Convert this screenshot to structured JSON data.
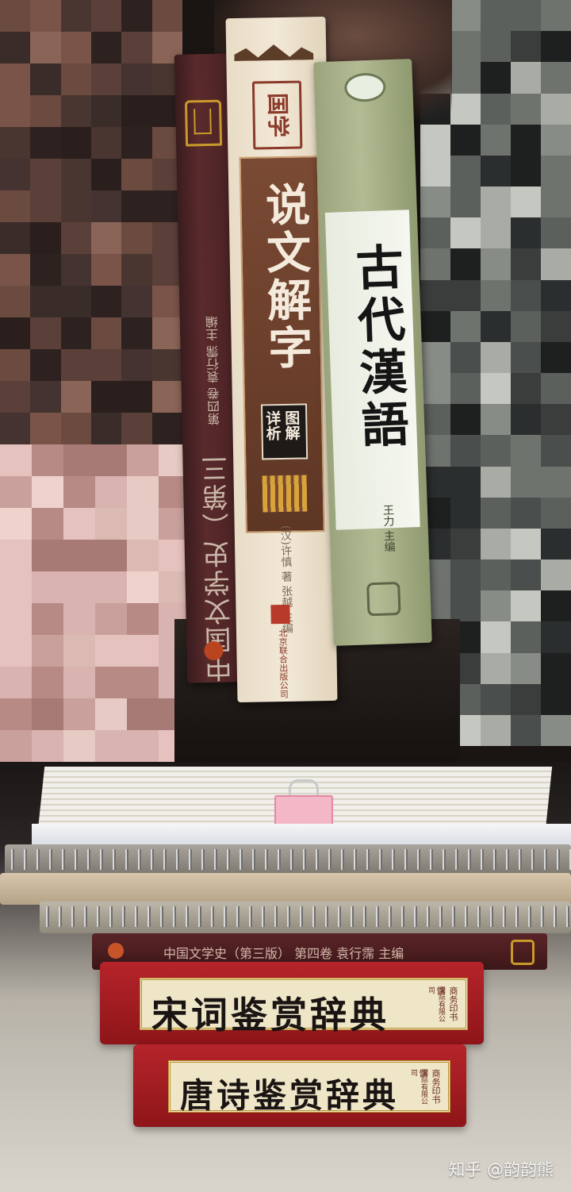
{
  "top_photo": {
    "description_books": [
      {
        "title": "中国文学史（第三版）",
        "meta": "第四卷 袁行霈 主编"
      },
      {
        "series": "国学",
        "title": "说文解字",
        "badge_line1": "图解",
        "badge_line2": "详析",
        "author": "(汉)许慎 著  张越 主编",
        "publisher": "北京联合出版公司"
      },
      {
        "title": "古代漢語",
        "author": "王力 主编"
      }
    ]
  },
  "bottom_photo": {
    "books": [
      {
        "title": "中国文学史（第三版） 第四卷 袁行霈 主编"
      },
      {
        "title": "宋词鉴赏辞典",
        "publisher_line1": "商务印书馆",
        "publisher_line2": "国际有限公司"
      },
      {
        "title": "唐诗鉴赏辞典",
        "publisher_line1": "商务印书馆",
        "publisher_line2": "国际有限公司"
      }
    ]
  },
  "watermark": "知乎 @韵韵熊",
  "colors": {
    "dict_red": "#b5242a",
    "label_cream": "#efe6c8",
    "shuowen_band": "#7a4a34",
    "gudai_green": "#9aa47c"
  }
}
